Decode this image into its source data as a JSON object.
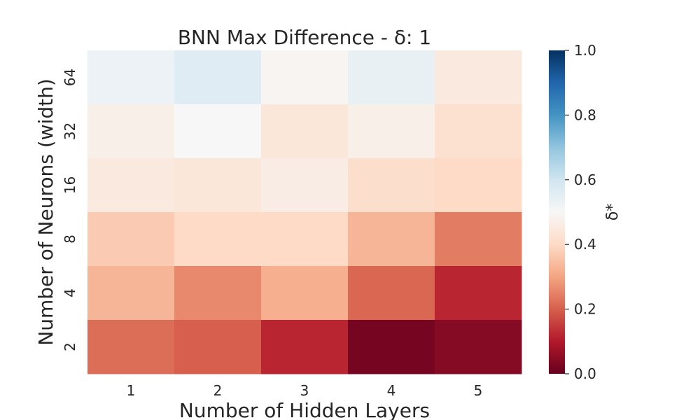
{
  "chart_data": {
    "type": "heatmap",
    "title": "BNN Max Difference - δ: 1",
    "xlabel": "Number of Hidden Layers",
    "ylabel": "Number of Neurons (width)",
    "x_categories": [
      "1",
      "2",
      "3",
      "4",
      "5"
    ],
    "y_categories": [
      "64",
      "32",
      "16",
      "8",
      "4",
      "2"
    ],
    "values": [
      [
        0.53,
        0.56,
        0.49,
        0.54,
        0.45
      ],
      [
        0.47,
        0.5,
        0.44,
        0.47,
        0.42
      ],
      [
        0.45,
        0.44,
        0.46,
        0.41,
        0.4
      ],
      [
        0.37,
        0.4,
        0.4,
        0.33,
        0.24
      ],
      [
        0.33,
        0.26,
        0.32,
        0.21,
        0.12
      ],
      [
        0.22,
        0.2,
        0.12,
        0.02,
        0.04
      ]
    ],
    "vmin": 0.0,
    "vmax": 1.0,
    "colorbar": {
      "label": "δ*",
      "ticks": [
        "0.0",
        "0.2",
        "0.4",
        "0.6",
        "0.8",
        "1.0"
      ],
      "colormap": [
        "#67001f",
        "#b2182b",
        "#d6604d",
        "#f4a582",
        "#fddbc7",
        "#f7f7f7",
        "#d1e5f0",
        "#92c5de",
        "#4393c3",
        "#2166ac",
        "#053061"
      ]
    }
  }
}
